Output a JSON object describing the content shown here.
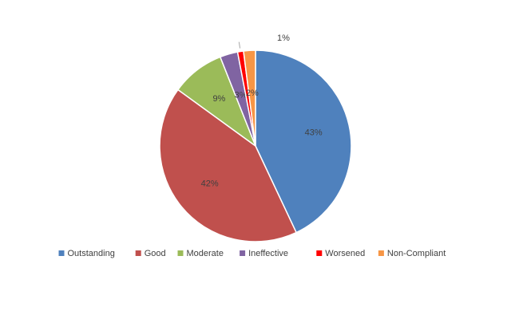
{
  "chart_data": {
    "type": "pie",
    "categories": [
      "Outstanding",
      "Good",
      "Moderate",
      "Ineffective",
      "Worsened",
      "Non-Compliant"
    ],
    "values": [
      43,
      42,
      9,
      3,
      1,
      2
    ],
    "value_labels": [
      "43%",
      "42%",
      "9%",
      "3%",
      "1%",
      "2%"
    ],
    "colors": [
      "#4f81bd",
      "#c0504d",
      "#9bbb59",
      "#8064a2",
      "#ff0000",
      "#f79646"
    ],
    "legend": "bottom"
  }
}
